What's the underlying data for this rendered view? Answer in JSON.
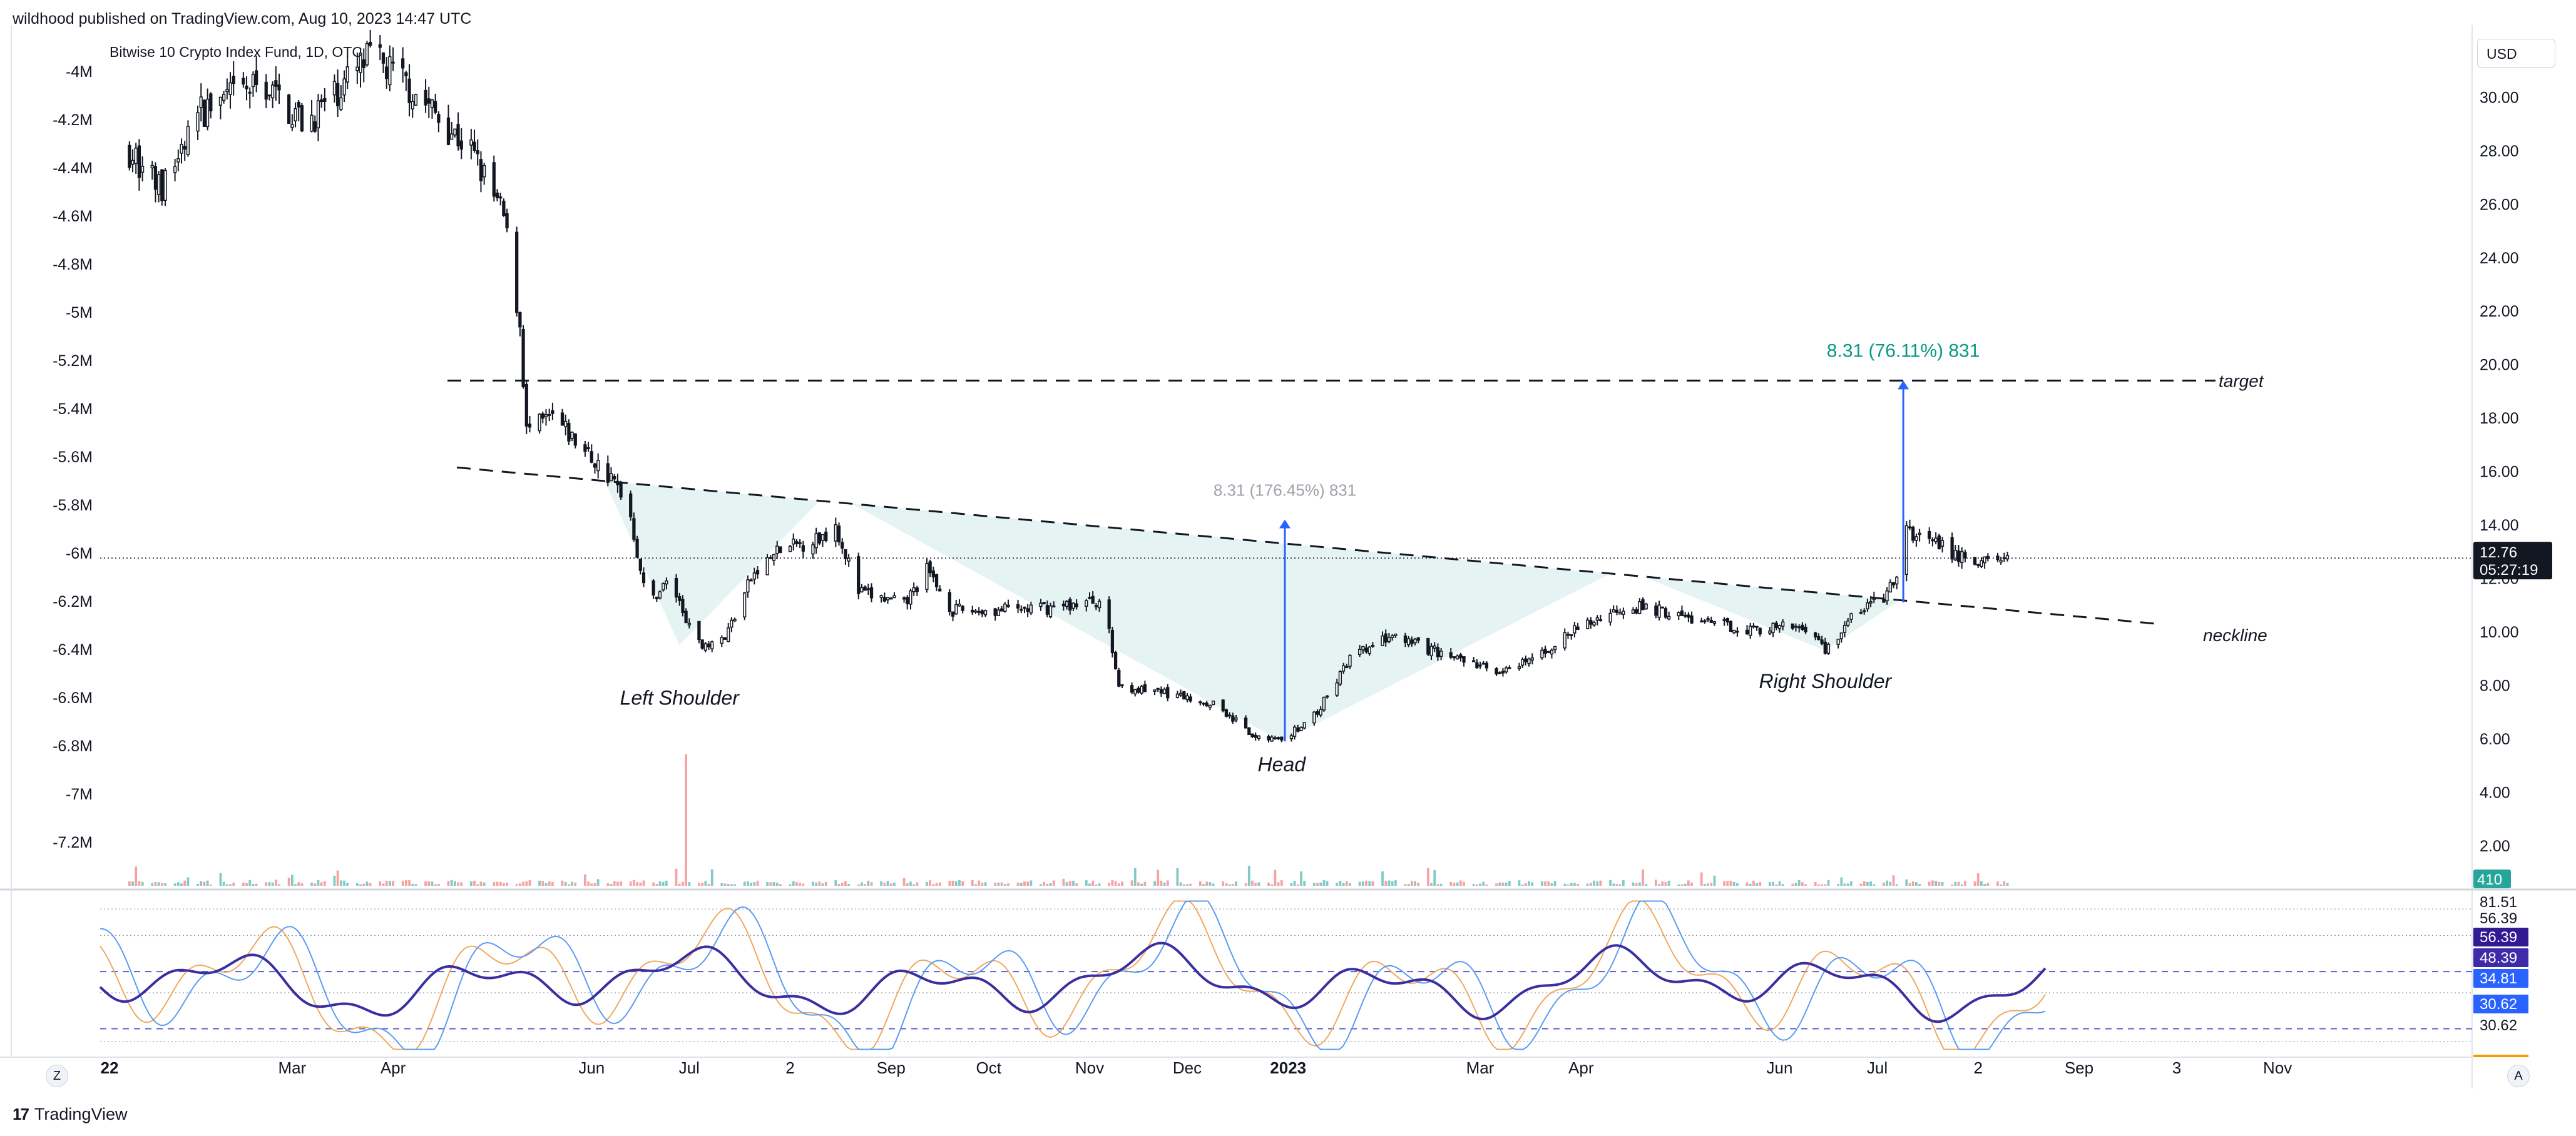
{
  "header": {
    "publisher": "wildhood published on TradingView.com, Aug 10, 2023 14:47 UTC",
    "symbol": "Bitwise 10 Crypto Index Fund, 1D, OTC"
  },
  "currency_button": "USD",
  "footer": {
    "brand": "TradingView",
    "left_button": "Z",
    "right_button": "A"
  },
  "colors": {
    "up": "#26a69a",
    "down": "#ef5350",
    "volume_up": "#80cbc4",
    "volume_down": "#f7a1a1",
    "pattern_fill": "#e0f2f1",
    "measure": "#2962ff",
    "target_text": "#089981",
    "rsi": "#3a2fa0",
    "stoch_k": "#5b9bf2",
    "stoch_d": "#f0a860"
  },
  "left_scale": {
    "labels": [
      "-4M",
      "-4.2M",
      "-4.4M",
      "-4.6M",
      "-4.8M",
      "-5M",
      "-5.2M",
      "-5.4M",
      "-5.6M",
      "-5.8M",
      "-6M",
      "-6.2M",
      "-6.4M",
      "-6.6M",
      "-6.8M",
      "-7M",
      "-7.2M"
    ]
  },
  "chart_data": {
    "type": "candlestick",
    "title": "Bitwise 10 Crypto Index Fund, 1D, OTC",
    "x_ticks": [
      "22",
      "Mar",
      "Apr",
      "Jun",
      "Jul",
      "2",
      "Sep",
      "Oct",
      "Nov",
      "Dec",
      "2023",
      "Mar",
      "Apr",
      "Jun",
      "Jul",
      "2",
      "Sep",
      "3",
      "Nov"
    ],
    "y_ticks": [
      2.0,
      4.0,
      6.0,
      8.0,
      10.0,
      12.0,
      14.0,
      16.0,
      18.0,
      20.0,
      22.0,
      24.0,
      26.0,
      28.0,
      30.0
    ],
    "ylim": [
      0.5,
      32.7
    ],
    "last_price": "12.76",
    "countdown": "05:27:19",
    "volume_label": "410",
    "price_path": [
      {
        "date": "2022-01-10",
        "price": 28.0
      },
      {
        "date": "2022-01-20",
        "price": 26.5
      },
      {
        "date": "2022-02-01",
        "price": 29.5
      },
      {
        "date": "2022-02-20",
        "price": 30.5
      },
      {
        "date": "2022-03-05",
        "price": 29.0
      },
      {
        "date": "2022-03-25",
        "price": 31.5
      },
      {
        "date": "2022-04-05",
        "price": 30.5
      },
      {
        "date": "2022-04-25",
        "price": 28.0
      },
      {
        "date": "2022-05-05",
        "price": 25.5
      },
      {
        "date": "2022-05-10",
        "price": 21.5
      },
      {
        "date": "2022-05-12",
        "price": 17.5
      },
      {
        "date": "2022-05-20",
        "price": 18.0
      },
      {
        "date": "2022-06-01",
        "price": 16.5
      },
      {
        "date": "2022-06-12",
        "price": 15.0
      },
      {
        "date": "2022-06-18",
        "price": 11.0
      },
      {
        "date": "2022-06-25",
        "price": 12.0
      },
      {
        "date": "2022-07-03",
        "price": 9.5
      },
      {
        "date": "2022-07-12",
        "price": 9.8
      },
      {
        "date": "2022-07-20",
        "price": 12.0
      },
      {
        "date": "2022-07-28",
        "price": 13.0
      },
      {
        "date": "2022-08-10",
        "price": 13.5
      },
      {
        "date": "2022-08-15",
        "price": 14.0
      },
      {
        "date": "2022-08-22",
        "price": 11.5
      },
      {
        "date": "2022-09-05",
        "price": 11.0
      },
      {
        "date": "2022-09-12",
        "price": 12.3
      },
      {
        "date": "2022-09-20",
        "price": 10.8
      },
      {
        "date": "2022-10-05",
        "price": 10.8
      },
      {
        "date": "2022-10-20",
        "price": 10.9
      },
      {
        "date": "2022-11-05",
        "price": 11.2
      },
      {
        "date": "2022-11-10",
        "price": 8.0
      },
      {
        "date": "2022-11-25",
        "price": 7.7
      },
      {
        "date": "2022-12-10",
        "price": 7.3
      },
      {
        "date": "2022-12-20",
        "price": 6.2
      },
      {
        "date": "2022-12-30",
        "price": 5.9
      },
      {
        "date": "2023-01-10",
        "price": 7.0
      },
      {
        "date": "2023-01-20",
        "price": 9.0
      },
      {
        "date": "2023-02-01",
        "price": 9.8
      },
      {
        "date": "2023-02-15",
        "price": 9.3
      },
      {
        "date": "2023-03-01",
        "price": 8.7
      },
      {
        "date": "2023-03-10",
        "price": 8.5
      },
      {
        "date": "2023-03-20",
        "price": 9.2
      },
      {
        "date": "2023-04-01",
        "price": 10.2
      },
      {
        "date": "2023-04-15",
        "price": 11.0
      },
      {
        "date": "2023-04-25",
        "price": 10.8
      },
      {
        "date": "2023-05-10",
        "price": 10.3
      },
      {
        "date": "2023-05-25",
        "price": 10.1
      },
      {
        "date": "2023-06-10",
        "price": 10.2
      },
      {
        "date": "2023-06-15",
        "price": 9.3
      },
      {
        "date": "2023-06-25",
        "price": 10.8
      },
      {
        "date": "2023-07-03",
        "price": 11.3
      },
      {
        "date": "2023-07-08",
        "price": 12.1
      },
      {
        "date": "2023-07-10",
        "price": 13.8
      },
      {
        "date": "2023-07-20",
        "price": 13.2
      },
      {
        "date": "2023-07-30",
        "price": 12.6
      },
      {
        "date": "2023-08-10",
        "price": 12.76
      }
    ],
    "volume_max": 410,
    "volume_spikes": [
      {
        "date": "2022-01-12",
        "value": 60,
        "up": false
      },
      {
        "date": "2022-06-30",
        "value": 410,
        "up": false
      },
      {
        "date": "2022-11-15",
        "value": 55,
        "up": true
      },
      {
        "date": "2022-11-22",
        "value": 50,
        "up": false
      },
      {
        "date": "2022-12-20",
        "value": 62,
        "up": true
      },
      {
        "date": "2022-12-28",
        "value": 50,
        "up": false
      },
      {
        "date": "2023-01-05",
        "value": 45,
        "up": true
      },
      {
        "date": "2023-07-10",
        "value": 20,
        "up": true
      }
    ],
    "annotations": {
      "left_shoulder": "Left Shoulder",
      "head": "Head",
      "right_shoulder": "Right Shoulder",
      "neckline": "neckline",
      "target": "target",
      "measure_head": "8.31 (176.45%) 831",
      "measure_target": "8.31 (76.11%) 831"
    },
    "pattern": {
      "neckline": [
        {
          "date": "2022-04-25",
          "price": 16.1
        },
        {
          "date": "2023-09-25",
          "price": 10.3
        }
      ],
      "target_line": [
        {
          "date": "2022-04-25",
          "price": 19.4
        },
        {
          "date": "2023-09-25",
          "price": 19.4
        }
      ],
      "left_shoulder_low": {
        "date": "2022-06-28",
        "price": 9.5
      },
      "head_low": {
        "date": "2022-12-30",
        "price": 5.9
      },
      "right_shoulder_low": {
        "date": "2023-06-15",
        "price": 9.3
      },
      "measure_head": {
        "date": "2022-12-31",
        "from": 5.9,
        "to": 14.2
      },
      "measure_target": {
        "date": "2023-07-09",
        "from": 11.1,
        "to": 19.4
      }
    },
    "oscillator": {
      "levels": [
        "81.51",
        "56.39",
        "56.39",
        "48.39",
        "34.81",
        "30.62",
        "30.62"
      ],
      "level_colors": [
        "#ffffff",
        "#ffffff",
        "#311b92",
        "#3f2aa8",
        "#2962ff",
        "#2962ff",
        "#ffffff"
      ]
    }
  }
}
